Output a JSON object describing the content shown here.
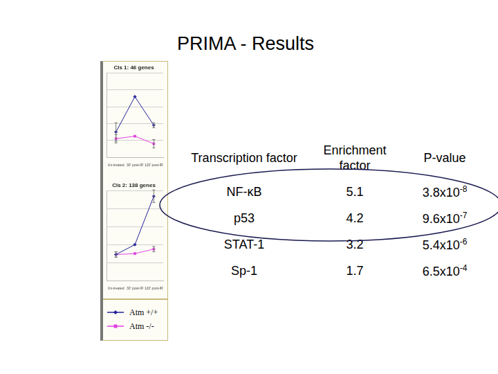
{
  "title": "PRIMA - Results",
  "chart_data": [
    {
      "type": "line",
      "title": "Cls 1: 46 genes",
      "categories": [
        "Un-treated",
        "30' post-IR",
        "120' post-IR"
      ],
      "series": [
        {
          "name": "Atm +/+",
          "color": "#22229a",
          "marker": "diamond",
          "values": [
            3.0,
            7.2,
            3.8
          ],
          "errors": [
            1.1,
            null,
            0.3
          ]
        },
        {
          "name": "Atm -/-",
          "color": "#e040e0",
          "marker": "square",
          "values": [
            2.2,
            2.5,
            1.6
          ],
          "errors": [
            0.5,
            null,
            0.5
          ]
        }
      ],
      "ylim": [
        0,
        10
      ],
      "yticks": [
        0,
        2,
        4,
        6,
        8,
        10
      ],
      "grid": true,
      "tick_labels": "x"
    },
    {
      "type": "line",
      "title": "Cls 2: 138 genes",
      "categories": [
        "Un-treated",
        "30' post-IR",
        "120' post-IR"
      ],
      "series": [
        {
          "name": "Atm +/+",
          "color": "#22229a",
          "marker": "diamond",
          "values": [
            2.9,
            4.0,
            9.4
          ],
          "errors": [
            0.3,
            null,
            0.7
          ]
        },
        {
          "name": "Atm -/-",
          "color": "#e040e0",
          "marker": "square",
          "values": [
            2.9,
            3.0,
            3.5
          ],
          "errors": [
            0.3,
            null,
            0.3
          ]
        }
      ],
      "ylim": [
        0,
        10
      ],
      "yticks": [
        0,
        2,
        4,
        6,
        8,
        10
      ],
      "grid": true,
      "tick_labels": "x"
    }
  ],
  "table": {
    "header": [
      "Transcription factor",
      "Enrichment factor",
      "P-value"
    ],
    "rows": [
      {
        "factor": "NF-κB",
        "enrichment": 5.1,
        "p_value": {
          "base": "3.8x10",
          "exponent": "-8"
        }
      },
      {
        "factor": "p53",
        "enrichment": 4.2,
        "p_value": {
          "base": "9.6x10",
          "exponent": "-7"
        }
      },
      {
        "factor": "STAT-1",
        "enrichment": 3.2,
        "p_value": {
          "base": "5.4x10",
          "exponent": "-6"
        }
      },
      {
        "factor": "Sp-1",
        "enrichment": 1.7,
        "p_value": {
          "base": "6.5x10",
          "exponent": "-4"
        }
      }
    ],
    "highlighted_rows": [
      0,
      1
    ]
  }
}
